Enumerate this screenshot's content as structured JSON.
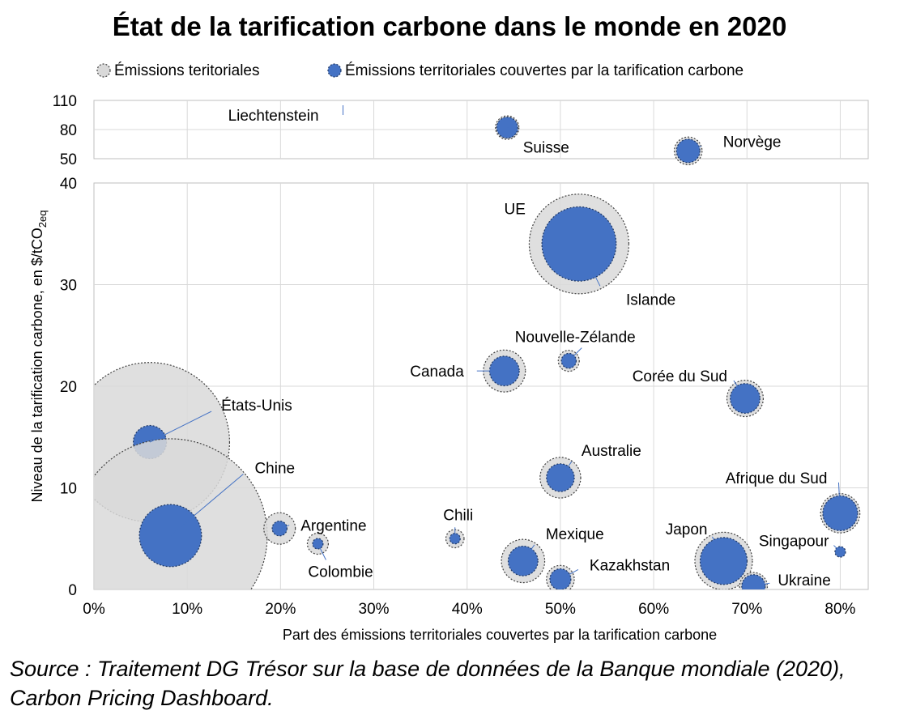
{
  "chart_data": {
    "type": "scatter",
    "title": "État de la tarification carbone dans le monde en 2020",
    "xlabel": "Part des émissions territoriales couvertes par la tarification carbone",
    "ylabel_main": "Niveau de la tarification carbone, en $/tCO",
    "ylabel_sub": "2eq",
    "x_ticks": [
      "0%",
      "10%",
      "20%",
      "30%",
      "40%",
      "50%",
      "60%",
      "70%",
      "80%"
    ],
    "xlim": [
      0,
      0.83
    ],
    "y_ticks_lower": [
      "0",
      "10",
      "20",
      "30",
      "40"
    ],
    "ylim_lower": [
      0,
      40
    ],
    "y_ticks_upper": [
      "50",
      "80",
      "110"
    ],
    "ylim_upper": [
      50,
      110
    ],
    "grid": true,
    "legend_position": "top",
    "legend": [
      {
        "key": "total",
        "label": "Émissions teritoriales"
      },
      {
        "key": "covered",
        "label": "Émissions territoriales couvertes par la tarification carbone"
      }
    ],
    "colors": {
      "total_fill": "#d9d9d9",
      "total_stroke": "#404040",
      "covered_fill": "#4472c4",
      "covered_stroke": "#1f3864",
      "grid": "#d9d9d9",
      "leader": "#4472c4"
    },
    "points": [
      {
        "name": "Liechtenstein",
        "x": 0.267,
        "y": 105,
        "total": 0.0,
        "covered": 0.0
      },
      {
        "name": "Suisse",
        "x": 0.443,
        "y": 82,
        "total": 0.5,
        "covered": 0.4
      },
      {
        "name": "Norvège",
        "x": 0.637,
        "y": 58,
        "total": 0.7,
        "covered": 0.5
      },
      {
        "name": "UE",
        "x": 0.52,
        "y": 34,
        "total": 9.0,
        "covered": 5.0
      },
      {
        "name": "Islande",
        "x": 0.52,
        "y": 34,
        "total": 0.0,
        "covered": 0.0
      },
      {
        "name": "Nouvelle-Zélande",
        "x": 0.509,
        "y": 22.5,
        "total": 0.4,
        "covered": 0.2
      },
      {
        "name": "Canada",
        "x": 0.44,
        "y": 21.5,
        "total": 1.6,
        "covered": 0.8
      },
      {
        "name": "Corée du Sud",
        "x": 0.698,
        "y": 18.8,
        "total": 1.2,
        "covered": 0.8
      },
      {
        "name": "États-Unis",
        "x": 0.06,
        "y": 14.5,
        "total": 23.0,
        "covered": 1.0
      },
      {
        "name": "Australie",
        "x": 0.5,
        "y": 11.0,
        "total": 1.5,
        "covered": 0.7
      },
      {
        "name": "Chine",
        "x": 0.082,
        "y": 5.3,
        "total": 34.0,
        "covered": 3.5
      },
      {
        "name": "Afrique du Sud",
        "x": 0.8,
        "y": 7.5,
        "total": 1.4,
        "covered": 1.1
      },
      {
        "name": "Argentine",
        "x": 0.199,
        "y": 6.0,
        "total": 0.9,
        "covered": 0.2
      },
      {
        "name": "Chili",
        "x": 0.387,
        "y": 5.0,
        "total": 0.3,
        "covered": 0.1
      },
      {
        "name": "Colombie",
        "x": 0.24,
        "y": 4.5,
        "total": 0.4,
        "covered": 0.1
      },
      {
        "name": "Singapour",
        "x": 0.8,
        "y": 3.7,
        "total": 0.1,
        "covered": 0.1
      },
      {
        "name": "Mexique",
        "x": 0.46,
        "y": 2.8,
        "total": 1.7,
        "covered": 0.8
      },
      {
        "name": "Japon",
        "x": 0.675,
        "y": 2.8,
        "total": 3.0,
        "covered": 2.0
      },
      {
        "name": "Kazakhstan",
        "x": 0.5,
        "y": 1.0,
        "total": 0.7,
        "covered": 0.4
      },
      {
        "name": "Ukraine",
        "x": 0.707,
        "y": 0.3,
        "total": 0.7,
        "covered": 0.5
      }
    ]
  },
  "source": "Source : Traitement DG Trésor sur la base de données de la Banque mondiale (2020), Carbon Pricing Dashboard."
}
